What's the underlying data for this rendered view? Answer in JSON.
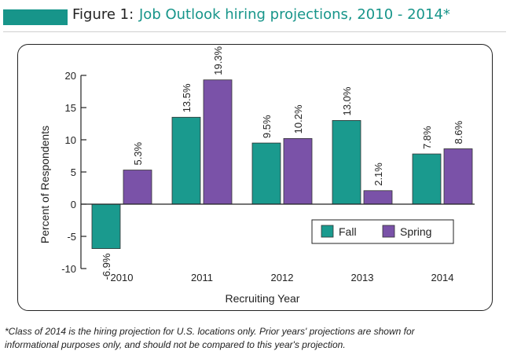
{
  "header": {
    "figure_label": "Figure 1:",
    "title": "Job Outlook hiring projections, 2010 - 2014*"
  },
  "footnote": {
    "line1": "*Class of 2014 is the hiring projection for U.S. locations only. Prior years' projections are shown for",
    "line2": "informational purposes only, and should not be compared to this year's projection."
  },
  "colors": {
    "accent": "#17958a",
    "fall": "#1a9a8e",
    "spring": "#7a52a8"
  },
  "chart_data": {
    "type": "bar",
    "title": "",
    "xlabel": "Recruiting Year",
    "ylabel": "Percent of Respondents",
    "categories": [
      "2010",
      "2011",
      "2012",
      "2013",
      "2014"
    ],
    "ylim": [
      -10,
      20
    ],
    "yticks": [
      "20",
      "15",
      "10",
      "5",
      "0",
      "-5",
      "-10"
    ],
    "grid": false,
    "legend_position": "bottom-right",
    "series": [
      {
        "name": "Fall",
        "values": [
          -6.9,
          13.5,
          9.5,
          13.0,
          7.8
        ],
        "labels": [
          "-6.9%",
          "13.5%",
          "9.5%",
          "13.0%",
          "7.8%"
        ]
      },
      {
        "name": "Spring",
        "values": [
          5.3,
          19.3,
          10.2,
          2.1,
          8.6
        ],
        "labels": [
          "5.3%",
          "19.3%",
          "10.2%",
          "2.1%",
          "8.6%"
        ]
      }
    ]
  }
}
